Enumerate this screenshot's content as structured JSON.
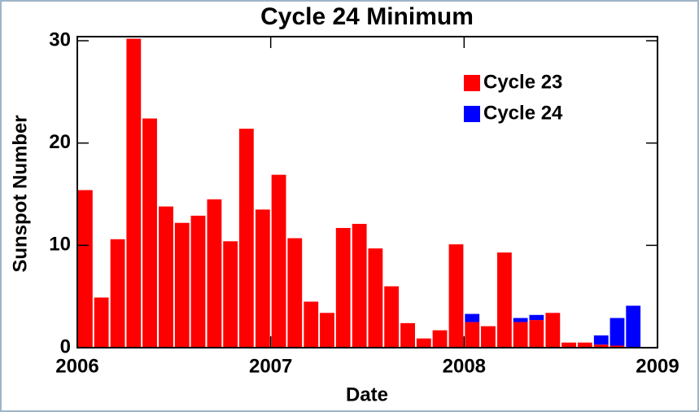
{
  "chart_data": {
    "type": "bar",
    "stacked": true,
    "title": "Cycle 24 Minimum",
    "xlabel": "Date",
    "ylabel": "Sunspot Number",
    "x": [
      2006.0,
      2006.083,
      2006.167,
      2006.25,
      2006.333,
      2006.417,
      2006.5,
      2006.583,
      2006.667,
      2006.75,
      2006.833,
      2006.917,
      2007.0,
      2007.083,
      2007.167,
      2007.25,
      2007.333,
      2007.417,
      2007.5,
      2007.583,
      2007.667,
      2007.75,
      2007.833,
      2007.917,
      2008.0,
      2008.083,
      2008.167,
      2008.25,
      2008.333,
      2008.417,
      2008.5,
      2008.583,
      2008.667,
      2008.75,
      2008.833,
      2008.917
    ],
    "series": [
      {
        "name": "Cycle 23",
        "color": "#ff0000",
        "values": [
          15.4,
          4.9,
          10.6,
          30.2,
          22.4,
          13.8,
          12.2,
          12.9,
          14.5,
          10.4,
          21.4,
          13.5,
          16.9,
          10.7,
          4.5,
          3.4,
          11.7,
          12.1,
          9.7,
          6.0,
          2.4,
          0.9,
          1.7,
          10.1,
          2.5,
          2.1,
          9.3,
          2.5,
          2.7,
          3.4,
          0.5,
          0.5,
          0.3,
          0.2,
          0,
          0
        ]
      },
      {
        "name": "Cycle 24",
        "color": "#0000ff",
        "values": [
          0,
          0,
          0,
          0,
          0,
          0,
          0,
          0,
          0,
          0,
          0,
          0,
          0,
          0,
          0,
          0,
          0,
          0,
          0,
          0,
          0,
          0,
          0,
          0,
          0.8,
          0,
          0,
          0.4,
          0.5,
          0,
          0,
          0,
          0.9,
          2.7,
          4.1,
          0
        ]
      }
    ],
    "xlim": [
      2006,
      2009
    ],
    "xticks": [
      2006,
      2007,
      2008,
      2009
    ],
    "ylim": [
      0,
      30.4
    ],
    "yticks": [
      0,
      10,
      20,
      30
    ],
    "legend": "upper right"
  }
}
